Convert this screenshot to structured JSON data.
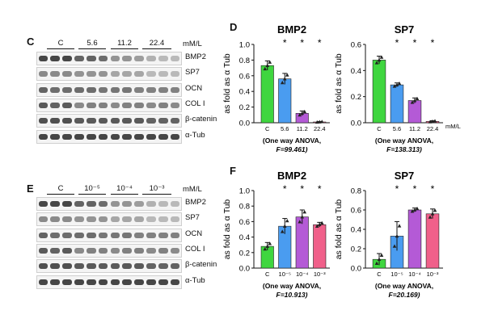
{
  "top": {
    "panel_letter": "C",
    "groups": [
      "C",
      "5.6",
      "11.2",
      "22.4"
    ],
    "unit": "mM/L",
    "rows": [
      "BMP2",
      "SP7",
      "OCN",
      "COL I",
      "β-catenin",
      "α-Tub"
    ]
  },
  "bottom": {
    "panel_letter": "E",
    "groups": [
      "C",
      "10⁻⁵",
      "10⁻⁴",
      "10⁻³"
    ],
    "unit": "mM/L",
    "rows": [
      "BMP2",
      "SP7",
      "OCN",
      "COL I",
      "β-catenin",
      "α-Tub"
    ]
  },
  "chart_letters": {
    "top": "D",
    "bottom": "F"
  },
  "chart_data": [
    {
      "id": "D-BMP2",
      "type": "bar",
      "title": "BMP2",
      "ylabel": "as fold as α Tub",
      "ylim": [
        0,
        1.0
      ],
      "yticks": [
        "0.0",
        "0.2",
        "0.4",
        "0.6",
        "0.8",
        "1.0"
      ],
      "categories": [
        "C",
        "5.6",
        "11.2",
        "22.4"
      ],
      "values": [
        0.73,
        0.56,
        0.12,
        0.01
      ],
      "errors": [
        0.06,
        0.07,
        0.03,
        0.005
      ],
      "significance": [
        "",
        "*",
        "*",
        "*"
      ],
      "x_unit": "",
      "stat_line1": "(One way ANOVA,",
      "stat_line2": "F=99.461)",
      "colors": [
        "#3fd63f",
        "#4a9cf0",
        "#b45ad6",
        "#f0608a"
      ]
    },
    {
      "id": "D-SP7",
      "type": "bar",
      "title": "SP7",
      "ylabel": "as fold as α Tub",
      "ylim": [
        0,
        0.6
      ],
      "yticks": [
        "0.0",
        "0.2",
        "0.4",
        "0.6"
      ],
      "categories": [
        "C",
        "5.6",
        "11.2",
        "22.4"
      ],
      "values": [
        0.48,
        0.29,
        0.17,
        0.01
      ],
      "errors": [
        0.03,
        0.015,
        0.02,
        0.005
      ],
      "significance": [
        "",
        "*",
        "*",
        "*"
      ],
      "x_unit": "mM/L",
      "stat_line1": "(One way ANOVA,",
      "stat_line2": "F=138.313)",
      "colors": [
        "#3fd63f",
        "#4a9cf0",
        "#b45ad6",
        "#f0608a"
      ]
    },
    {
      "id": "F-BMP2",
      "type": "bar",
      "title": "BMP2",
      "ylabel": "as fold as α Tub",
      "ylim": [
        0,
        1.0
      ],
      "yticks": [
        "0.0",
        "0.2",
        "0.4",
        "0.6",
        "0.8",
        "1.0"
      ],
      "categories": [
        "C",
        "10⁻⁵",
        "10⁻⁴",
        "10⁻³"
      ],
      "values": [
        0.28,
        0.54,
        0.66,
        0.56
      ],
      "errors": [
        0.05,
        0.1,
        0.09,
        0.03
      ],
      "significance": [
        "",
        "*",
        "*",
        "*"
      ],
      "x_unit": "",
      "stat_line1": "(One way ANOVA,",
      "stat_line2": "F=10.913)",
      "colors": [
        "#3fd63f",
        "#4a9cf0",
        "#b45ad6",
        "#f0608a"
      ]
    },
    {
      "id": "F-SP7",
      "type": "bar",
      "title": "SP7",
      "ylabel": "as fold as α Tub",
      "ylim": [
        0,
        0.8
      ],
      "yticks": [
        "0.0",
        "0.2",
        "0.4",
        "0.6",
        "0.8"
      ],
      "categories": [
        "C",
        "10⁻⁵",
        "10⁻⁴",
        "10⁻³"
      ],
      "values": [
        0.09,
        0.33,
        0.6,
        0.56
      ],
      "errors": [
        0.06,
        0.15,
        0.02,
        0.05
      ],
      "significance": [
        "",
        "*",
        "*",
        "*"
      ],
      "x_unit": "",
      "stat_line1": "(One way ANOVA,",
      "stat_line2": "F=20.169)",
      "colors": [
        "#3fd63f",
        "#4a9cf0",
        "#b45ad6",
        "#f0608a"
      ]
    }
  ]
}
